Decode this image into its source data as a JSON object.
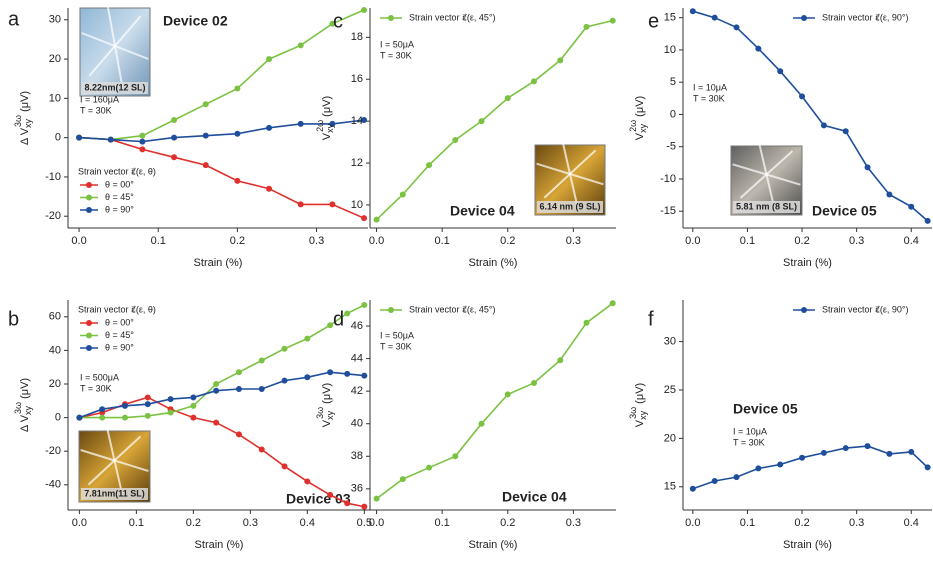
{
  "chart_data": [
    {
      "type": "line",
      "panel": "a",
      "title": "Device 02",
      "inset_label": "8.22nm(12 SL)",
      "annotations": [
        "I = 160μA",
        "T = 30K"
      ],
      "legend_title": "Strain vector ε⃗(ε, θ)",
      "xlabel": "Strain (%)",
      "ylabel": {
        "symbol": "Δ V",
        "sub": "xy",
        "sup": "3ω",
        "unit": "(μV)"
      },
      "x": [
        0,
        0.04,
        0.08,
        0.12,
        0.16,
        0.2,
        0.24,
        0.28,
        0.32,
        0.36
      ],
      "series": [
        {
          "name": "θ = 00°",
          "color": "#e0302c",
          "values": [
            0,
            -0.5,
            -3,
            -5,
            -7,
            -11,
            -13,
            -17,
            -17,
            -20.5
          ]
        },
        {
          "name": "θ = 45°",
          "color": "#7cc242",
          "values": [
            0,
            -0.5,
            0.5,
            4.5,
            8.5,
            12.5,
            20,
            23.5,
            29,
            32.5
          ]
        },
        {
          "name": "θ = 90°",
          "color": "#1f4f9c",
          "values": [
            0,
            -0.5,
            -1,
            0,
            0.5,
            1,
            2.5,
            3.5,
            3.5,
            4.5
          ]
        }
      ],
      "xlim": [
        -0.014,
        0.365
      ],
      "ylim": [
        -23,
        33
      ],
      "xticks": [
        {
          "value": 0,
          "label": "0.0"
        },
        0.1,
        0.2,
        0.3
      ],
      "yticks": [
        -20,
        -10,
        0,
        10,
        20,
        30
      ]
    },
    {
      "type": "line",
      "panel": "b",
      "title": "Device 03",
      "inset_label": "7.81nm(11 SL)",
      "annotations": [
        "I = 500μA",
        "T = 30K"
      ],
      "legend_title": "Strain vector ε⃗(ε, θ)",
      "xlabel": "Strain (%)",
      "ylabel": {
        "symbol": "Δ V",
        "sub": "xy",
        "sup": "3ω",
        "unit": "(μV)"
      },
      "x": [
        0,
        0.04,
        0.08,
        0.12,
        0.16,
        0.2,
        0.24,
        0.28,
        0.32,
        0.36,
        0.4,
        0.44,
        0.47,
        0.5
      ],
      "series": [
        {
          "name": "θ = 00°",
          "color": "#e0302c",
          "values": [
            0,
            3,
            8,
            12,
            5,
            0,
            -3,
            -10,
            -19,
            -29,
            -38,
            -46,
            -51,
            -53
          ]
        },
        {
          "name": "θ = 45°",
          "color": "#7cc242",
          "values": [
            0,
            0,
            0,
            1,
            3,
            7,
            20,
            27,
            34,
            41,
            47,
            55,
            62,
            67
          ]
        },
        {
          "name": "θ = 90°",
          "color": "#1f4f9c",
          "values": [
            0,
            5,
            7,
            8,
            11,
            12,
            16,
            17,
            17,
            22,
            24,
            27,
            26,
            25
          ]
        }
      ],
      "xlim": [
        -0.02,
        0.51
      ],
      "ylim": [
        -55,
        70
      ],
      "xticks": [
        {
          "value": 0,
          "label": "0.0"
        },
        0.1,
        0.2,
        0.3,
        0.4,
        0.5
      ],
      "yticks": [
        -40,
        -20,
        0,
        20,
        40,
        60
      ]
    },
    {
      "type": "line",
      "panel": "c",
      "title": "Device 04",
      "inset_label": "6.14 nm (9 SL)",
      "annotations": [
        "I = 50μA",
        "T = 30K"
      ],
      "xlabel": "Strain (%)",
      "ylabel": {
        "symbol": "V",
        "sub": "xy",
        "sup": "2ω",
        "unit": "(μV)"
      },
      "x": [
        0,
        0.04,
        0.08,
        0.12,
        0.16,
        0.2,
        0.24,
        0.28,
        0.32,
        0.36
      ],
      "series": [
        {
          "name": "Strain vector ε⃗(ε, 45°)",
          "color": "#7cc242",
          "values": [
            9.3,
            10.5,
            11.9,
            13.1,
            14.0,
            15.1,
            15.9,
            16.9,
            18.5,
            18.8
          ]
        }
      ],
      "xlim": [
        -0.01,
        0.365
      ],
      "ylim": [
        8.9,
        19.4
      ],
      "xticks": [
        {
          "value": 0,
          "label": "0.0"
        },
        0.1,
        0.2,
        0.3
      ],
      "yticks": [
        10,
        12,
        14,
        16,
        18
      ]
    },
    {
      "type": "line",
      "panel": "d",
      "title": "Device 04",
      "annotations": [
        "I = 50μA",
        "T = 30K"
      ],
      "xlabel": "Strain (%)",
      "ylabel": {
        "symbol": "V",
        "sub": "xy",
        "sup": "3ω",
        "unit": "(μV)"
      },
      "x": [
        0,
        0.04,
        0.08,
        0.12,
        0.16,
        0.2,
        0.24,
        0.28,
        0.32,
        0.36
      ],
      "series": [
        {
          "name": "Strain vector ε⃗(ε, 45°)",
          "color": "#7cc242",
          "values": [
            35.4,
            36.6,
            37.3,
            38.0,
            40.0,
            41.8,
            42.5,
            43.9,
            46.2,
            47.4
          ]
        }
      ],
      "xlim": [
        -0.01,
        0.365
      ],
      "ylim": [
        34.7,
        47.6
      ],
      "xticks": [
        {
          "value": 0,
          "label": "0.0"
        },
        0.1,
        0.2,
        0.3
      ],
      "yticks": [
        36,
        38,
        40,
        42,
        44,
        46
      ]
    },
    {
      "type": "line",
      "panel": "e",
      "title": "Device 05",
      "inset_label": "5.81 nm (8 SL)",
      "annotations": [
        "I = 10μA",
        "T = 30K"
      ],
      "xlabel": "Strain (%)",
      "ylabel": {
        "symbol": "V",
        "sub": "xy",
        "sup": "2ω",
        "unit": "(μV)"
      },
      "x": [
        0,
        0.04,
        0.08,
        0.12,
        0.16,
        0.2,
        0.24,
        0.28,
        0.32,
        0.36,
        0.4,
        0.43
      ],
      "series": [
        {
          "name": "Strain vector ε⃗(ε, 90°)",
          "color": "#1f4f9c",
          "values": [
            16,
            15,
            13.5,
            10.2,
            6.7,
            2.8,
            -1.7,
            -2.6,
            -8.2,
            -12.4,
            -14.3,
            -16.5
          ]
        }
      ],
      "xlim": [
        -0.018,
        0.438
      ],
      "ylim": [
        -17.6,
        16.5
      ],
      "xticks": [
        {
          "value": 0,
          "label": "0.0"
        },
        0.1,
        0.2,
        0.3,
        0.4
      ],
      "yticks": [
        -15,
        -10,
        -5,
        0,
        5,
        10,
        15
      ]
    },
    {
      "type": "line",
      "panel": "f",
      "title": "Device 05",
      "annotations": [
        "I = 10μA",
        "T = 30K"
      ],
      "xlabel": "Strain (%)",
      "ylabel": {
        "symbol": "V",
        "sub": "xy",
        "sup": "3ω",
        "unit": "(μV)"
      },
      "x": [
        0,
        0.04,
        0.08,
        0.12,
        0.16,
        0.2,
        0.24,
        0.28,
        0.32,
        0.36,
        0.4,
        0.43
      ],
      "series": [
        {
          "name": "Strain vector ε⃗(ε, 90°)",
          "color": "#1f4f9c",
          "values": [
            14.8,
            15.6,
            16.0,
            16.9,
            17.3,
            18.0,
            18.5,
            19.0,
            19.2,
            18.4,
            18.6,
            17.0
          ]
        }
      ],
      "xlim": [
        -0.018,
        0.438
      ],
      "ylim": [
        12.6,
        34.3
      ],
      "xticks": [
        {
          "value": 0,
          "label": "0.0"
        },
        0.1,
        0.2,
        0.3,
        0.4
      ],
      "yticks": [
        15,
        20,
        25,
        30
      ]
    }
  ]
}
